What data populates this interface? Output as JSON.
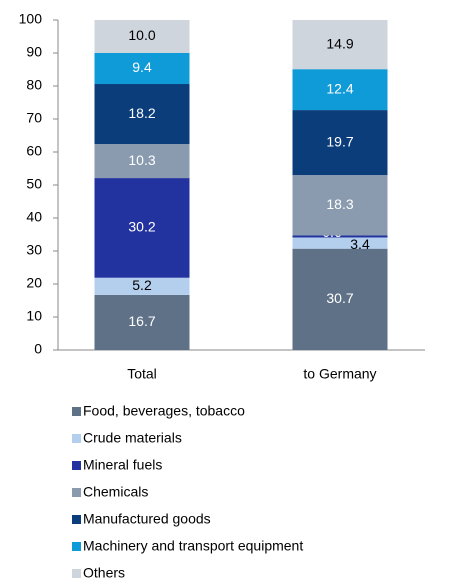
{
  "chart_data": {
    "type": "stacked_bar",
    "categories": [
      "Total",
      "to Germany"
    ],
    "series": [
      {
        "name": "Food, beverages, tobacco",
        "color": "#5f7186",
        "values": [
          16.7,
          30.7
        ]
      },
      {
        "name": "Crude materials",
        "color": "#b4cfee",
        "values": [
          5.2,
          3.4
        ]
      },
      {
        "name": "Mineral fuels",
        "color": "#2233a0",
        "values": [
          30.2,
          0.6
        ]
      },
      {
        "name": "Chemicals",
        "color": "#8a9bb0",
        "values": [
          10.3,
          18.3
        ]
      },
      {
        "name": "Manufactured goods",
        "color": "#0a3d7a",
        "values": [
          18.2,
          19.7
        ]
      },
      {
        "name": "Machinery and transport equipment",
        "color": "#0f9bd7",
        "values": [
          9.4,
          12.4
        ]
      },
      {
        "name": "Others",
        "color": "#cfd5dd",
        "values": [
          10.0,
          14.9
        ]
      }
    ],
    "value_labels": [
      [
        "16.7",
        "30.7"
      ],
      [
        "5.2",
        "3.4"
      ],
      [
        "30.2",
        "0.6"
      ],
      [
        "10.3",
        "18.3"
      ],
      [
        "18.2",
        "19.7"
      ],
      [
        "9.4",
        "12.4"
      ],
      [
        "10.0",
        "14.9"
      ]
    ],
    "ylim": [
      0,
      100
    ],
    "yticks": [
      0,
      10,
      20,
      30,
      40,
      50,
      60,
      70,
      80,
      90,
      100
    ],
    "grid": false,
    "legend": "bottom"
  }
}
